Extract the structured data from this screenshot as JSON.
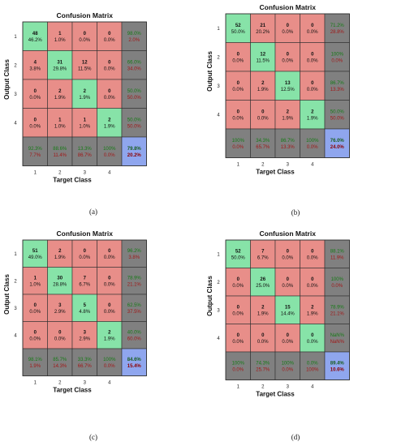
{
  "chart_data": [
    {
      "type": "heatmap",
      "caption": "(a)",
      "title": "Confusion Matrix",
      "xlabel": "Target Class",
      "ylabel": "Output Class",
      "x_ticks": [
        "1",
        "2",
        "3",
        "4"
      ],
      "y_ticks": [
        "1",
        "2",
        "3",
        "4"
      ],
      "cells": [
        [
          {
            "count": "48",
            "pct": "46.2%"
          },
          {
            "count": "1",
            "pct": "1.0%"
          },
          {
            "count": "0",
            "pct": "0.0%"
          },
          {
            "count": "0",
            "pct": "0.0%"
          }
        ],
        [
          {
            "count": "4",
            "pct": "3.8%"
          },
          {
            "count": "31",
            "pct": "29.8%"
          },
          {
            "count": "12",
            "pct": "11.5%"
          },
          {
            "count": "0",
            "pct": "0.0%"
          }
        ],
        [
          {
            "count": "0",
            "pct": "0.0%"
          },
          {
            "count": "2",
            "pct": "1.9%"
          },
          {
            "count": "2",
            "pct": "1.9%"
          },
          {
            "count": "0",
            "pct": "0.0%"
          }
        ],
        [
          {
            "count": "0",
            "pct": "0.0%"
          },
          {
            "count": "1",
            "pct": "1.0%"
          },
          {
            "count": "1",
            "pct": "1.0%"
          },
          {
            "count": "2",
            "pct": "1.9%"
          }
        ]
      ],
      "row_summary": [
        [
          "98.0%",
          "2.0%"
        ],
        [
          "66.0%",
          "34.0%"
        ],
        [
          "50.0%",
          "50.0%"
        ],
        [
          "50.0%",
          "50.0%"
        ]
      ],
      "col_summary": [
        [
          "92.3%",
          "7.7%"
        ],
        [
          "88.6%",
          "11.4%"
        ],
        [
          "13.3%",
          "86.7%"
        ],
        [
          "100%",
          "0.0%"
        ]
      ],
      "overall": [
        "79.8%",
        "20.2%"
      ]
    },
    {
      "type": "heatmap",
      "caption": "(b)",
      "title": "Confusion Matrix",
      "xlabel": "Target Class",
      "ylabel": "Output Class",
      "x_ticks": [
        "1",
        "2",
        "3",
        "4"
      ],
      "y_ticks": [
        "1",
        "2",
        "3",
        "4"
      ],
      "cells": [
        [
          {
            "count": "52",
            "pct": "50.0%"
          },
          {
            "count": "21",
            "pct": "20.2%"
          },
          {
            "count": "0",
            "pct": "0.0%"
          },
          {
            "count": "0",
            "pct": "0.0%"
          }
        ],
        [
          {
            "count": "0",
            "pct": "0.0%"
          },
          {
            "count": "12",
            "pct": "11.5%"
          },
          {
            "count": "0",
            "pct": "0.0%"
          },
          {
            "count": "0",
            "pct": "0.0%"
          }
        ],
        [
          {
            "count": "0",
            "pct": "0.0%"
          },
          {
            "count": "2",
            "pct": "1.9%"
          },
          {
            "count": "13",
            "pct": "12.5%"
          },
          {
            "count": "0",
            "pct": "0.0%"
          }
        ],
        [
          {
            "count": "0",
            "pct": "0.0%"
          },
          {
            "count": "0",
            "pct": "0.0%"
          },
          {
            "count": "2",
            "pct": "1.9%"
          },
          {
            "count": "2",
            "pct": "1.9%"
          }
        ]
      ],
      "row_summary": [
        [
          "71.2%",
          "28.8%"
        ],
        [
          "100%",
          "0.0%"
        ],
        [
          "86.7%",
          "13.3%"
        ],
        [
          "50.0%",
          "50.0%"
        ]
      ],
      "col_summary": [
        [
          "100%",
          "0.0%"
        ],
        [
          "34.3%",
          "65.7%"
        ],
        [
          "86.7%",
          "13.3%"
        ],
        [
          "100%",
          "0.0%"
        ]
      ],
      "overall": [
        "76.0%",
        "24.0%"
      ]
    },
    {
      "type": "heatmap",
      "caption": "(c)",
      "title": "Confusion Matrix",
      "xlabel": "Target Class",
      "ylabel": "Output Class",
      "x_ticks": [
        "1",
        "2",
        "3",
        "4"
      ],
      "y_ticks": [
        "1",
        "2",
        "3",
        "4"
      ],
      "cells": [
        [
          {
            "count": "51",
            "pct": "49.0%"
          },
          {
            "count": "2",
            "pct": "1.9%"
          },
          {
            "count": "0",
            "pct": "0.0%"
          },
          {
            "count": "0",
            "pct": "0.0%"
          }
        ],
        [
          {
            "count": "1",
            "pct": "1.0%"
          },
          {
            "count": "30",
            "pct": "28.8%"
          },
          {
            "count": "7",
            "pct": "6.7%"
          },
          {
            "count": "0",
            "pct": "0.0%"
          }
        ],
        [
          {
            "count": "0",
            "pct": "0.0%"
          },
          {
            "count": "3",
            "pct": "2.9%"
          },
          {
            "count": "5",
            "pct": "4.8%"
          },
          {
            "count": "0",
            "pct": "0.0%"
          }
        ],
        [
          {
            "count": "0",
            "pct": "0.0%"
          },
          {
            "count": "0",
            "pct": "0.0%"
          },
          {
            "count": "3",
            "pct": "2.9%"
          },
          {
            "count": "2",
            "pct": "1.9%"
          }
        ]
      ],
      "row_summary": [
        [
          "96.2%",
          "3.8%"
        ],
        [
          "78.9%",
          "21.1%"
        ],
        [
          "62.5%",
          "37.5%"
        ],
        [
          "40.0%",
          "60.0%"
        ]
      ],
      "col_summary": [
        [
          "98.1%",
          "1.9%"
        ],
        [
          "85.7%",
          "14.3%"
        ],
        [
          "33.3%",
          "66.7%"
        ],
        [
          "100%",
          "0.0%"
        ]
      ],
      "overall": [
        "84.6%",
        "15.4%"
      ]
    },
    {
      "type": "heatmap",
      "caption": "(d)",
      "title": "Confusion Matrix",
      "xlabel": "Target Class",
      "ylabel": "Output Class",
      "x_ticks": [
        "1",
        "2",
        "3",
        "4"
      ],
      "y_ticks": [
        "1",
        "2",
        "3",
        "4"
      ],
      "cells": [
        [
          {
            "count": "52",
            "pct": "50.0%"
          },
          {
            "count": "7",
            "pct": "6.7%"
          },
          {
            "count": "0",
            "pct": "0.0%"
          },
          {
            "count": "0",
            "pct": "0.0%"
          }
        ],
        [
          {
            "count": "0",
            "pct": "0.0%"
          },
          {
            "count": "26",
            "pct": "25.0%"
          },
          {
            "count": "0",
            "pct": "0.0%"
          },
          {
            "count": "0",
            "pct": "0.0%"
          }
        ],
        [
          {
            "count": "0",
            "pct": "0.0%"
          },
          {
            "count": "2",
            "pct": "1.9%"
          },
          {
            "count": "15",
            "pct": "14.4%"
          },
          {
            "count": "2",
            "pct": "1.9%"
          }
        ],
        [
          {
            "count": "0",
            "pct": "0.0%"
          },
          {
            "count": "0",
            "pct": "0.0%"
          },
          {
            "count": "0",
            "pct": "0.0%"
          },
          {
            "count": "0",
            "pct": "0.0%"
          }
        ]
      ],
      "row_summary": [
        [
          "88.1%",
          "11.9%"
        ],
        [
          "100%",
          "0.0%"
        ],
        [
          "78.9%",
          "21.1%"
        ],
        [
          "NaN%",
          "NaN%"
        ]
      ],
      "col_summary": [
        [
          "100%",
          "0.0%"
        ],
        [
          "74.3%",
          "25.7%"
        ],
        [
          "100%",
          "0.0%"
        ],
        [
          "0.0%",
          "100%"
        ]
      ],
      "overall": [
        "89.4%",
        "10.6%"
      ]
    }
  ],
  "colors": {
    "diagonal": "#87E3A8",
    "off_diagonal": "#E88E89",
    "summary": "#808080",
    "overall": "#8FA6EE",
    "good_text": "#167A16",
    "bad_text": "#A01818",
    "dark_text": "#111111",
    "overall_good_text": "#1B5E20",
    "overall_bad_text": "#8B0000"
  }
}
